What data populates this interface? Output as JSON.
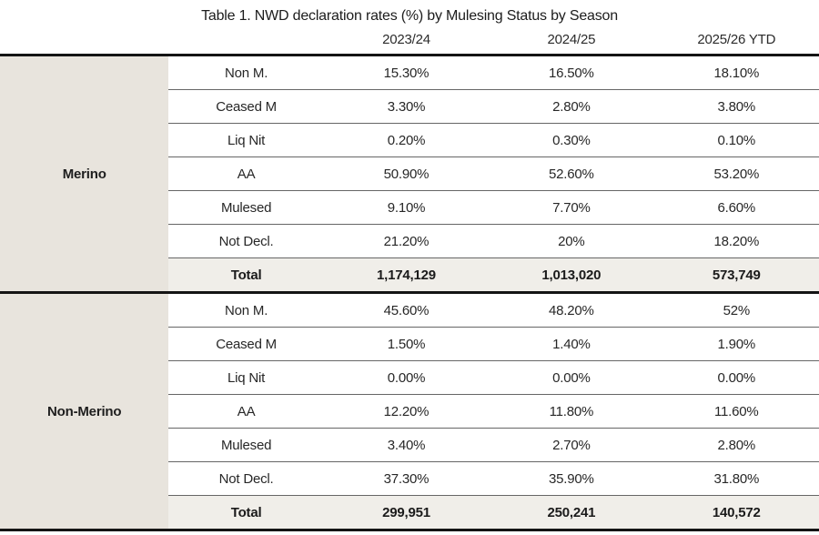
{
  "title": "Table 1. NWD declaration rates (%) by Mulesing Status by Season",
  "table": {
    "season_columns": [
      "2023/24",
      "2024/25",
      "2025/26 YTD"
    ],
    "sections": [
      {
        "category": "Merino",
        "rows": [
          {
            "label": "Non M.",
            "values": [
              "15.30%",
              "16.50%",
              "18.10%"
            ]
          },
          {
            "label": "Ceased M",
            "values": [
              "3.30%",
              "2.80%",
              "3.80%"
            ]
          },
          {
            "label": "Liq Nit",
            "values": [
              "0.20%",
              "0.30%",
              "0.10%"
            ]
          },
          {
            "label": "AA",
            "values": [
              "50.90%",
              "52.60%",
              "53.20%"
            ]
          },
          {
            "label": "Mulesed",
            "values": [
              "9.10%",
              "7.70%",
              "6.60%"
            ]
          },
          {
            "label": "Not Decl.",
            "values": [
              "21.20%",
              "20%",
              "18.20%"
            ]
          }
        ],
        "total": {
          "label": "Total",
          "values": [
            "1,174,129",
            "1,013,020",
            "573,749"
          ]
        }
      },
      {
        "category": "Non-Merino",
        "rows": [
          {
            "label": "Non M.",
            "values": [
              "45.60%",
              "48.20%",
              "52%"
            ]
          },
          {
            "label": "Ceased M",
            "values": [
              "1.50%",
              "1.40%",
              "1.90%"
            ]
          },
          {
            "label": "Liq Nit",
            "values": [
              "0.00%",
              "0.00%",
              "0.00%"
            ]
          },
          {
            "label": "AA",
            "values": [
              "12.20%",
              "11.80%",
              "11.60%"
            ]
          },
          {
            "label": "Mulesed",
            "values": [
              "3.40%",
              "2.70%",
              "2.80%"
            ]
          },
          {
            "label": "Not Decl.",
            "values": [
              "37.30%",
              "35.90%",
              "31.80%"
            ]
          }
        ],
        "total": {
          "label": "Total",
          "values": [
            "299,951",
            "250,241",
            "140,572"
          ]
        }
      }
    ]
  },
  "colors": {
    "category_bg": "#e8e4dd",
    "total_row_bg": "#f0eee9",
    "thick_border": "#141414",
    "thin_border": "#666666",
    "text": "#272727"
  }
}
